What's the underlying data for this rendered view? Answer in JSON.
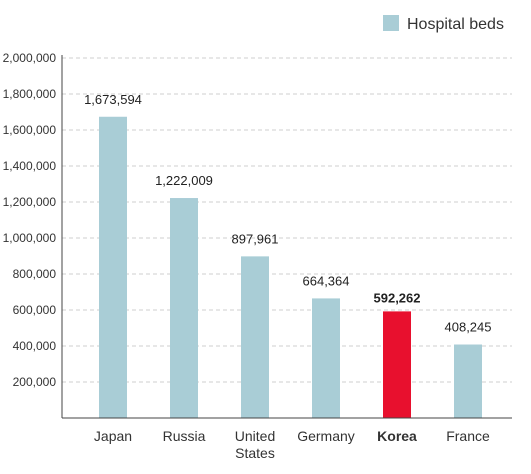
{
  "colors": {
    "bar": "#a9cdd6",
    "highlight": "#e8102e",
    "legend_swatch": "#a9cdd6"
  },
  "chart_data": {
    "type": "bar",
    "title": "",
    "xlabel": "",
    "ylabel": "",
    "ylim": [
      0,
      2000000
    ],
    "y_ticks": [
      "200,000",
      "400,000",
      "600,000",
      "800,000",
      "1,000,000",
      "1,200,000",
      "1,400,000",
      "1,600,000",
      "1,800,000",
      "2,000,000"
    ],
    "y_tick_values": [
      200000,
      400000,
      600000,
      800000,
      1000000,
      1200000,
      1400000,
      1600000,
      1800000,
      2000000
    ],
    "grid": true,
    "legend": {
      "placement": "top-right",
      "entries": [
        "Hospital beds"
      ]
    },
    "categories": [
      {
        "label_lines": [
          "Japan"
        ],
        "value": 1673594,
        "value_label": "1,673,594",
        "highlight": false
      },
      {
        "label_lines": [
          "Russia"
        ],
        "value": 1222009,
        "value_label": "1,222,009",
        "highlight": false
      },
      {
        "label_lines": [
          "United",
          "States"
        ],
        "value": 897961,
        "value_label": "897,961",
        "highlight": false
      },
      {
        "label_lines": [
          "Germany"
        ],
        "value": 664364,
        "value_label": "664,364",
        "highlight": false
      },
      {
        "label_lines": [
          "Korea"
        ],
        "value": 592262,
        "value_label": "592,262",
        "highlight": true
      },
      {
        "label_lines": [
          "France"
        ],
        "value": 408245,
        "value_label": "408,245",
        "highlight": false
      }
    ]
  }
}
